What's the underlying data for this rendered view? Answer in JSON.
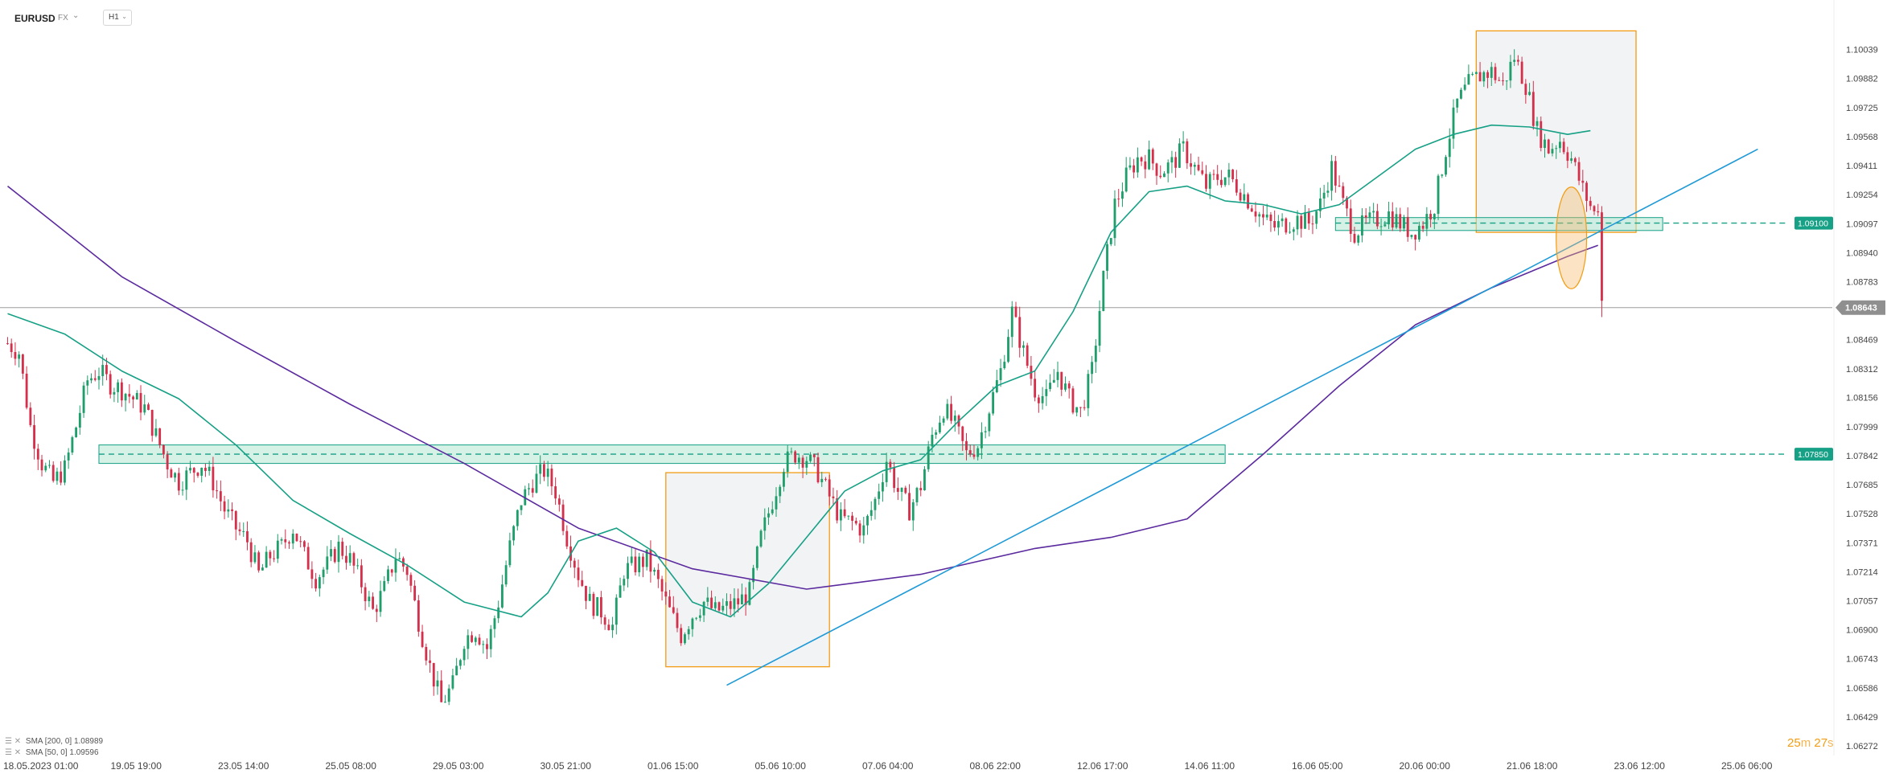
{
  "toolbar": {
    "symbol": "EURUSD",
    "market": "FX",
    "market_caret": "⌄",
    "timeframe": "H1",
    "timeframe_caret": "⌄"
  },
  "indicators": [
    {
      "label": "SMA [200, 0] 1.08989",
      "icons": "☰ ✕",
      "color": "#5b2a9e"
    },
    {
      "label": "SMA [50, 0] 1.09596",
      "icons": "☰ ✕",
      "color": "#16a085"
    }
  ],
  "timer": {
    "minutes": "25",
    "m": "m",
    "seconds": "27",
    "s": "s"
  },
  "chart_data": {
    "type": "candlestick",
    "symbol": "EURUSD",
    "timeframe": "H1",
    "y_ticks": [
      "1.10039",
      "1.09882",
      "1.09725",
      "1.09568",
      "1.09411",
      "1.09254",
      "1.09097",
      "1.08940",
      "1.08783",
      "1.08469",
      "1.08312",
      "1.08156",
      "1.07999",
      "1.07842",
      "1.07685",
      "1.07528",
      "1.07371",
      "1.07214",
      "1.07057",
      "1.06900",
      "1.06743",
      "1.06586",
      "1.06429",
      "1.06272"
    ],
    "x_ticks": [
      "18.05.2023  01:00",
      "19.05  19:00",
      "23.05  14:00",
      "25.05  08:00",
      "29.05  03:00",
      "30.05  21:00",
      "01.06  15:00",
      "05.06  10:00",
      "07.06  04:00",
      "08.06  22:00",
      "12.06  17:00",
      "14.06  11:00",
      "16.06  05:00",
      "20.06  00:00",
      "21.06  18:00",
      "23.06  12:00",
      "25.06  06:00"
    ],
    "current_price": "1.08643",
    "levels": [
      {
        "label": "1.09100",
        "value": 1.091,
        "color": "#16a085"
      },
      {
        "label": "1.07850",
        "value": 1.0785,
        "color": "#16a085"
      }
    ],
    "colors": {
      "up": "#1e9e6a",
      "down": "#d4304b",
      "sma50": "#16a085",
      "sma200": "#5b2a9e",
      "trendline": "#1f9ad6",
      "box": "#f39c12",
      "zone_fill": "#b5e8d4"
    },
    "price_path": [
      [
        0,
        1.0845
      ],
      [
        3,
        1.084
      ],
      [
        6,
        1.08
      ],
      [
        9,
        1.078
      ],
      [
        12,
        1.077
      ],
      [
        15,
        1.0777
      ],
      [
        18,
        1.08
      ],
      [
        21,
        1.0825
      ],
      [
        24,
        1.083
      ],
      [
        27,
        1.0823
      ],
      [
        30,
        1.082
      ],
      [
        33,
        1.0815
      ],
      [
        36,
        1.081
      ],
      [
        39,
        1.0795
      ],
      [
        42,
        1.078
      ],
      [
        45,
        1.077
      ],
      [
        48,
        1.0775
      ],
      [
        51,
        1.078
      ],
      [
        54,
        1.077
      ],
      [
        57,
        1.0755
      ],
      [
        60,
        1.0745
      ],
      [
        63,
        1.0738
      ],
      [
        66,
        1.072
      ],
      [
        69,
        1.073
      ],
      [
        72,
        1.0735
      ],
      [
        75,
        1.0745
      ],
      [
        78,
        1.073
      ],
      [
        81,
        1.0718
      ],
      [
        84,
        1.0725
      ],
      [
        87,
        1.0735
      ],
      [
        90,
        1.0728
      ],
      [
        93,
        1.0715
      ],
      [
        96,
        1.07
      ],
      [
        99,
        1.0712
      ],
      [
        102,
        1.073
      ],
      [
        105,
        1.0722
      ],
      [
        108,
        1.0695
      ],
      [
        111,
        1.067
      ],
      [
        114,
        1.065
      ],
      [
        117,
        1.066
      ],
      [
        120,
        1.0685
      ],
      [
        123,
        1.069
      ],
      [
        126,
        1.068
      ],
      [
        129,
        1.0705
      ],
      [
        132,
        1.0735
      ],
      [
        135,
        1.076
      ],
      [
        138,
        1.077
      ],
      [
        141,
        1.0776
      ],
      [
        144,
        1.0765
      ],
      [
        147,
        1.074
      ],
      [
        150,
        1.072
      ],
      [
        153,
        1.0705
      ],
      [
        156,
        1.07
      ],
      [
        159,
        1.0692
      ],
      [
        162,
        1.0722
      ],
      [
        165,
        1.0725
      ],
      [
        168,
        1.0728
      ],
      [
        171,
        1.0715
      ],
      [
        174,
        1.07
      ],
      [
        177,
        1.0687
      ],
      [
        180,
        1.0698
      ],
      [
        183,
        1.0705
      ],
      [
        186,
        1.07
      ],
      [
        189,
        1.0702
      ],
      [
        192,
        1.0705
      ],
      [
        195,
        1.071
      ],
      [
        198,
        1.074
      ],
      [
        201,
        1.076
      ],
      [
        204,
        1.078
      ],
      [
        207,
        1.0785
      ],
      [
        210,
        1.0783
      ],
      [
        213,
        1.0775
      ],
      [
        216,
        1.0762
      ],
      [
        219,
        1.075
      ],
      [
        222,
        1.0748
      ],
      [
        225,
        1.0744
      ],
      [
        228,
        1.076
      ],
      [
        231,
        1.0782
      ],
      [
        234,
        1.0765
      ],
      [
        237,
        1.0755
      ],
      [
        240,
        1.0768
      ],
      [
        243,
        1.0795
      ],
      [
        246,
        1.081
      ],
      [
        249,
        1.08
      ],
      [
        252,
        1.0785
      ],
      [
        255,
        1.079
      ],
      [
        258,
        1.081
      ],
      [
        261,
        1.083
      ],
      [
        264,
        1.0862
      ],
      [
        267,
        1.084
      ],
      [
        270,
        1.082
      ],
      [
        273,
        1.0815
      ],
      [
        276,
        1.083
      ],
      [
        279,
        1.0815
      ],
      [
        282,
        1.0808
      ],
      [
        285,
        1.083
      ],
      [
        288,
        1.088
      ],
      [
        291,
        1.092
      ],
      [
        294,
        1.0935
      ],
      [
        297,
        1.0945
      ],
      [
        300,
        1.0945
      ],
      [
        303,
        1.0938
      ],
      [
        306,
        1.0942
      ],
      [
        309,
        1.095
      ],
      [
        312,
        1.094
      ],
      [
        315,
        1.093
      ],
      [
        318,
        1.0935
      ],
      [
        321,
        1.0935
      ],
      [
        324,
        1.0928
      ],
      [
        327,
        1.092
      ],
      [
        330,
        1.0912
      ],
      [
        333,
        1.0908
      ],
      [
        336,
        1.091
      ],
      [
        339,
        1.0912
      ],
      [
        342,
        1.091
      ],
      [
        345,
        1.092
      ],
      [
        348,
        1.094
      ],
      [
        351,
        1.092
      ],
      [
        354,
        1.0905
      ],
      [
        357,
        1.091
      ],
      [
        360,
        1.0912
      ],
      [
        363,
        1.0915
      ],
      [
        366,
        1.091
      ],
      [
        369,
        1.0905
      ],
      [
        372,
        1.091
      ],
      [
        375,
        1.092
      ],
      [
        378,
        1.095
      ],
      [
        381,
        1.0975
      ],
      [
        384,
        1.0985
      ],
      [
        387,
        1.099
      ],
      [
        390,
        1.0992
      ],
      [
        393,
        1.0985
      ],
      [
        396,
        1.1
      ],
      [
        399,
        1.0985
      ],
      [
        402,
        1.096
      ],
      [
        405,
        1.095
      ],
      [
        408,
        1.0955
      ],
      [
        411,
        1.0945
      ],
      [
        414,
        1.0928
      ],
      [
        417,
        1.0915
      ],
      [
        418,
        1.092
      ],
      [
        419,
        1.0868
      ]
    ],
    "sma50_path": [
      [
        0,
        1.0861
      ],
      [
        15,
        1.085
      ],
      [
        30,
        1.083
      ],
      [
        45,
        1.0815
      ],
      [
        60,
        1.079
      ],
      [
        75,
        1.076
      ],
      [
        90,
        1.0742
      ],
      [
        105,
        1.0725
      ],
      [
        120,
        1.0705
      ],
      [
        135,
        1.0697
      ],
      [
        142,
        1.071
      ],
      [
        150,
        1.0738
      ],
      [
        160,
        1.0745
      ],
      [
        170,
        1.0732
      ],
      [
        180,
        1.0705
      ],
      [
        190,
        1.0697
      ],
      [
        200,
        1.0715
      ],
      [
        210,
        1.074
      ],
      [
        220,
        1.0765
      ],
      [
        230,
        1.0776
      ],
      [
        240,
        1.0782
      ],
      [
        250,
        1.0803
      ],
      [
        260,
        1.0822
      ],
      [
        270,
        1.083
      ],
      [
        280,
        1.0862
      ],
      [
        290,
        1.0905
      ],
      [
        300,
        1.0927
      ],
      [
        310,
        1.093
      ],
      [
        320,
        1.0922
      ],
      [
        330,
        1.092
      ],
      [
        340,
        1.0915
      ],
      [
        350,
        1.092
      ],
      [
        360,
        1.0935
      ],
      [
        370,
        1.095
      ],
      [
        380,
        1.0958
      ],
      [
        390,
        1.0963
      ],
      [
        400,
        1.0962
      ],
      [
        410,
        1.0958
      ],
      [
        416,
        1.096
      ]
    ],
    "sma200_path": [
      [
        0,
        1.093
      ],
      [
        30,
        1.0881
      ],
      [
        60,
        1.0846
      ],
      [
        90,
        1.0812
      ],
      [
        120,
        1.078
      ],
      [
        150,
        1.0745
      ],
      [
        180,
        1.0723
      ],
      [
        210,
        1.0712
      ],
      [
        240,
        1.072
      ],
      [
        270,
        1.0734
      ],
      [
        290,
        1.074
      ],
      [
        310,
        1.075
      ],
      [
        330,
        1.0785
      ],
      [
        350,
        1.0822
      ],
      [
        370,
        1.0855
      ],
      [
        390,
        1.0875
      ],
      [
        410,
        1.0892
      ],
      [
        418,
        1.0898
      ]
    ],
    "trendline": {
      "from": [
        189,
        1.066
      ],
      "to": [
        460,
        1.095
      ]
    },
    "zones": [
      {
        "from": 24,
        "to": 320,
        "low": 1.078,
        "high": 1.079,
        "level": 1.0785
      },
      {
        "from": 349,
        "to": 435,
        "low": 1.0906,
        "high": 1.0913,
        "level": 1.091
      }
    ],
    "boxes": [
      {
        "from": 173,
        "to": 216,
        "low": 1.067,
        "high": 1.0775
      },
      {
        "from": 386,
        "to": 428,
        "low": 1.0905,
        "high": 1.1014
      }
    ],
    "ellipse": {
      "center": [
        411,
        1.0902
      ],
      "rx_bars": 4,
      "ry": 0.00275
    },
    "x_range": [
      -2,
      480
    ],
    "y_range": [
      1.0622,
      1.1022
    ]
  }
}
